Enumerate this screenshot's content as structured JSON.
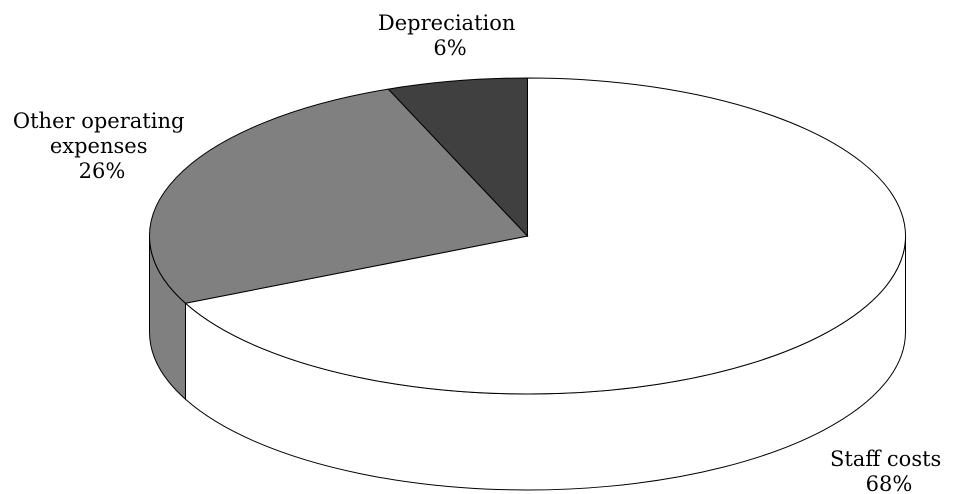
{
  "chart_data": {
    "type": "pie",
    "style": "3d",
    "title": "",
    "slices": [
      {
        "label": "Staff costs",
        "value": 68,
        "value_label": "68%",
        "color": "#ffffff"
      },
      {
        "label": "Other operating expenses",
        "label_lines": [
          "Other operating",
          "expenses"
        ],
        "value": 26,
        "value_label": "26%",
        "color": "#808080"
      },
      {
        "label": "Depreciation",
        "value": 6,
        "value_label": "6%",
        "color": "#404040"
      }
    ],
    "legend": "none"
  }
}
